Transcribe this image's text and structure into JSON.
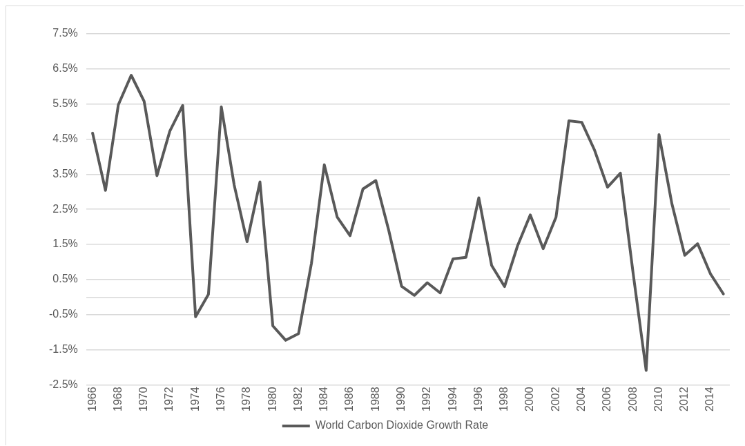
{
  "chart_data": {
    "type": "line",
    "categories": [
      "1966",
      null,
      "1968",
      null,
      "1970",
      null,
      "1972",
      null,
      "1974",
      null,
      "1976",
      null,
      "1978",
      null,
      "1980",
      null,
      "1982",
      null,
      "1984",
      null,
      "1986",
      null,
      "1988",
      null,
      "1990",
      null,
      "1992",
      null,
      "1994",
      null,
      "1996",
      null,
      "1998",
      null,
      "2000",
      null,
      "2002",
      null,
      "2004",
      null,
      "2006",
      null,
      "2008",
      null,
      "2010",
      null,
      "2012",
      null,
      "2014",
      null
    ],
    "series": [
      {
        "name": "World Carbon Dioxide Growth Rate",
        "color": "#595959",
        "values": [
          4.67,
          3.04,
          5.48,
          6.32,
          5.58,
          3.46,
          4.73,
          5.46,
          -0.56,
          0.08,
          5.42,
          3.19,
          1.58,
          3.28,
          -0.82,
          -1.23,
          -1.04,
          0.96,
          3.77,
          2.28,
          1.75,
          3.08,
          3.32,
          1.91,
          0.31,
          0.05,
          0.41,
          0.12,
          1.09,
          1.13,
          2.83,
          0.9,
          0.3,
          1.45,
          2.34,
          1.38,
          2.28,
          5.02,
          4.98,
          4.18,
          3.13,
          3.53,
          0.65,
          -2.09,
          4.63,
          2.66,
          1.19,
          1.52,
          0.66,
          0.09
        ]
      }
    ],
    "ylim": [
      -2.5,
      7.5
    ],
    "yticks": [
      {
        "value": -2.5,
        "label": "-2.5%"
      },
      {
        "value": -1.5,
        "label": "-1.5%"
      },
      {
        "value": -0.5,
        "label": "-0.5%"
      },
      {
        "value": 0,
        "label": null
      },
      {
        "value": 0.5,
        "label": "0.5%"
      },
      {
        "value": 1.5,
        "label": "1.5%"
      },
      {
        "value": 2.5,
        "label": "2.5%"
      },
      {
        "value": 3.5,
        "label": "3.5%"
      },
      {
        "value": 4.5,
        "label": "4.5%"
      },
      {
        "value": 5.5,
        "label": "5.5%"
      },
      {
        "value": 6.5,
        "label": "6.5%"
      },
      {
        "value": 7.5,
        "label": "7.5%"
      }
    ],
    "grid": "y",
    "legend": "bottom",
    "marker": "none",
    "line_style": "solid"
  }
}
